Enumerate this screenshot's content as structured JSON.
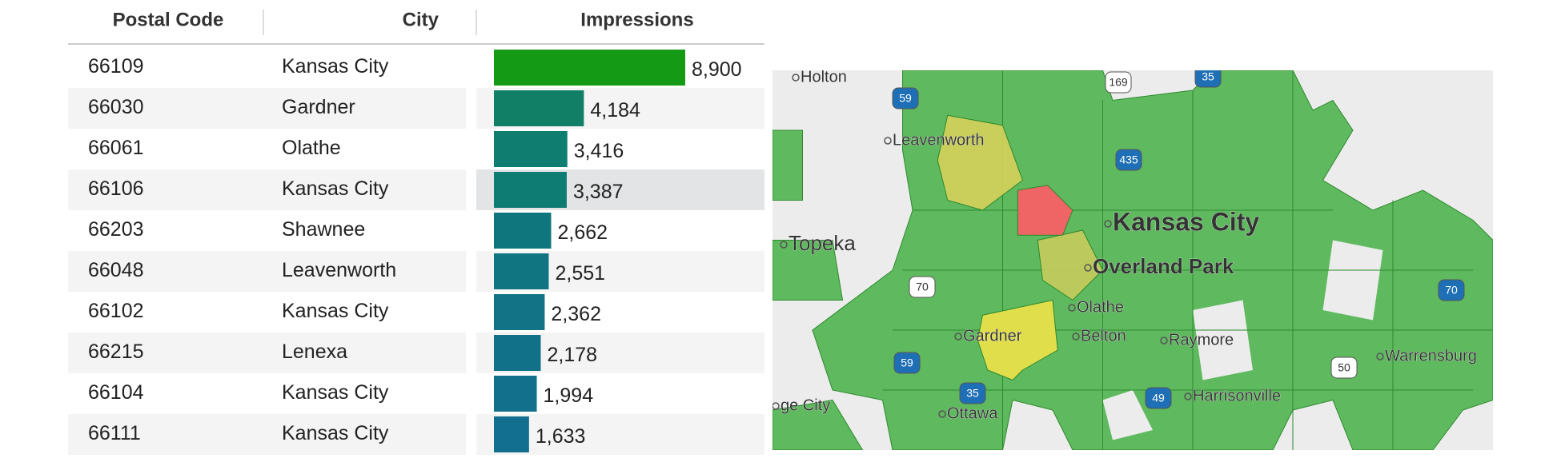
{
  "table": {
    "headers": [
      "Postal Code",
      "City",
      "Impressions"
    ],
    "rows": [
      {
        "postal_code": "66109",
        "city": "Kansas City",
        "impressions": 8900,
        "impressions_label": "8,900",
        "color": "#149a14"
      },
      {
        "postal_code": "66030",
        "city": "Gardner",
        "impressions": 4184,
        "impressions_label": "4,184",
        "color": "#117f66"
      },
      {
        "postal_code": "66061",
        "city": "Olathe",
        "impressions": 3416,
        "impressions_label": "3,416",
        "color": "#0f7d70"
      },
      {
        "postal_code": "66106",
        "city": "Kansas City",
        "impressions": 3387,
        "impressions_label": "3,387",
        "color": "#0f7c74"
      },
      {
        "postal_code": "66203",
        "city": "Shawnee",
        "impressions": 2662,
        "impressions_label": "2,662",
        "color": "#10767e"
      },
      {
        "postal_code": "66048",
        "city": "Leavenworth",
        "impressions": 2551,
        "impressions_label": "2,551",
        "color": "#107581"
      },
      {
        "postal_code": "66102",
        "city": "Kansas City",
        "impressions": 2362,
        "impressions_label": "2,362",
        "color": "#117385"
      },
      {
        "postal_code": "66215",
        "city": "Lenexa",
        "impressions": 2178,
        "impressions_label": "2,178",
        "color": "#117189"
      },
      {
        "postal_code": "66104",
        "city": "Kansas City",
        "impressions": 1994,
        "impressions_label": "1,994",
        "color": "#12708c"
      },
      {
        "postal_code": "66111",
        "city": "Kansas City",
        "impressions": 1633,
        "impressions_label": "1,633",
        "color": "#136f90"
      }
    ]
  },
  "map": {
    "labels": [
      "Holton",
      "Leavenworth",
      "Topeka",
      "Kansas City",
      "Overland Park",
      "Olathe",
      "Gardner",
      "Belton",
      "Raymore",
      "Warrensburg",
      "Harrisonville",
      "Ottawa",
      "ge City"
    ],
    "shields": [
      "59",
      "169",
      "35",
      "435",
      "70",
      "70",
      "59",
      "50",
      "35",
      "49"
    ]
  }
}
